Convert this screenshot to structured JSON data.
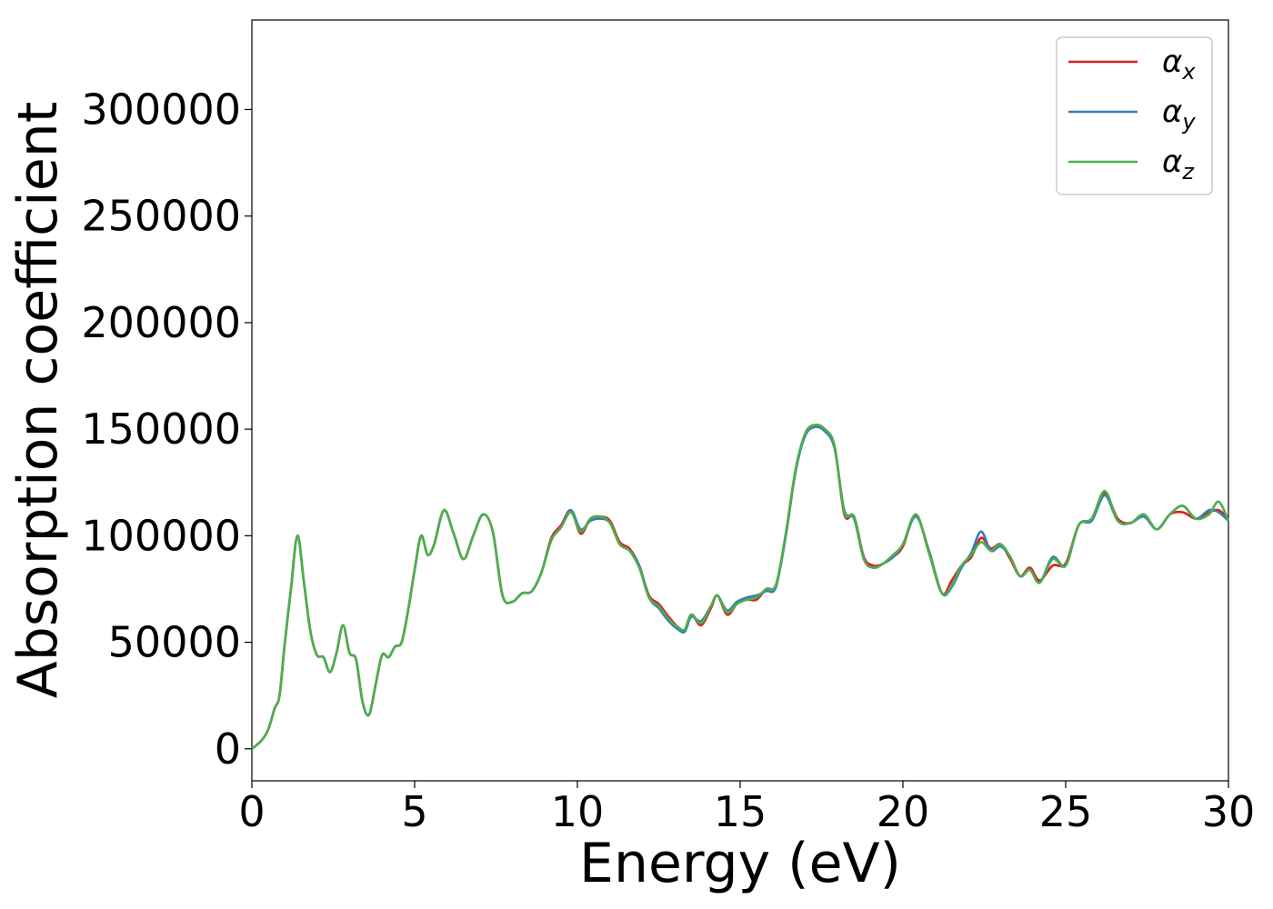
{
  "chart_data": {
    "type": "line",
    "xlabel": "Energy (eV)",
    "ylabel": "Absorption coefficient",
    "xlim": [
      0,
      30
    ],
    "ylim": [
      -15000,
      342000
    ],
    "xticks": [
      0,
      5,
      10,
      15,
      20,
      25,
      30
    ],
    "xtick_labels": [
      "0",
      "5",
      "10",
      "15",
      "20",
      "25",
      "30"
    ],
    "yticks": [
      0,
      50000,
      100000,
      150000,
      200000,
      250000,
      300000
    ],
    "ytick_labels": [
      "0",
      "50000",
      "100000",
      "150000",
      "200000",
      "250000",
      "300000"
    ],
    "grid": false,
    "legend_position": "top-right",
    "x": [
      0,
      0.3,
      0.5,
      0.7,
      0.85,
      1.0,
      1.2,
      1.4,
      1.6,
      1.8,
      2.0,
      2.2,
      2.4,
      2.6,
      2.8,
      3.0,
      3.2,
      3.4,
      3.6,
      3.8,
      4.0,
      4.2,
      4.4,
      4.6,
      4.8,
      5.0,
      5.2,
      5.4,
      5.6,
      5.9,
      6.2,
      6.5,
      6.8,
      7.1,
      7.4,
      7.7,
      8.0,
      8.3,
      8.6,
      8.9,
      9.2,
      9.5,
      9.8,
      10.1,
      10.4,
      10.7,
      11.0,
      11.3,
      11.6,
      11.9,
      12.2,
      12.5,
      12.8,
      13.1,
      13.3,
      13.5,
      13.8,
      14.1,
      14.3,
      14.6,
      14.9,
      15.2,
      15.5,
      15.8,
      16.1,
      16.4,
      16.7,
      17.0,
      17.3,
      17.6,
      17.9,
      18.2,
      18.5,
      18.8,
      19.1,
      19.4,
      19.7,
      20.0,
      20.4,
      20.8,
      21.2,
      21.5,
      21.8,
      22.1,
      22.4,
      22.7,
      23.0,
      23.3,
      23.6,
      23.9,
      24.2,
      24.6,
      25.0,
      25.4,
      25.8,
      26.2,
      26.6,
      27.0,
      27.4,
      27.8,
      28.2,
      28.6,
      29.0,
      29.4,
      29.7,
      30.0
    ],
    "series": [
      {
        "name": "αx",
        "color": "#e41a1c",
        "values": [
          0,
          4000,
          9000,
          19000,
          25000,
          48000,
          75000,
          100000,
          78000,
          55000,
          44000,
          43000,
          36000,
          45000,
          58000,
          45000,
          42000,
          22000,
          16000,
          30000,
          44000,
          43000,
          48000,
          50000,
          65000,
          84000,
          100000,
          91000,
          96000,
          112000,
          101000,
          89000,
          100000,
          110000,
          102000,
          72000,
          69000,
          73000,
          74000,
          83000,
          99000,
          105000,
          112000,
          101000,
          108000,
          109000,
          107000,
          97000,
          94000,
          86000,
          72000,
          68000,
          62000,
          57000,
          56000,
          63000,
          58000,
          66000,
          72000,
          63000,
          68000,
          70000,
          70000,
          75000,
          77000,
          100000,
          130000,
          148000,
          152000,
          150000,
          142000,
          110000,
          109000,
          90000,
          86000,
          87000,
          90000,
          95000,
          110000,
          92000,
          73000,
          79000,
          86000,
          90000,
          99000,
          94000,
          96000,
          89000,
          81000,
          85000,
          79000,
          86000,
          87000,
          105000,
          108000,
          120000,
          108000,
          106000,
          110000,
          103000,
          110000,
          111000,
          108000,
          111000,
          112000,
          108000
        ]
      },
      {
        "name": "αy",
        "color": "#377eb8",
        "values": [
          0,
          4000,
          9000,
          19000,
          25000,
          48000,
          75000,
          100000,
          78000,
          55000,
          44000,
          43000,
          36000,
          45000,
          58000,
          45000,
          42000,
          22000,
          16000,
          30000,
          44000,
          43000,
          48000,
          50000,
          65000,
          84000,
          100000,
          91000,
          96000,
          112000,
          101000,
          89000,
          100000,
          110000,
          102000,
          72000,
          69000,
          73000,
          74000,
          83000,
          98000,
          104000,
          112000,
          103000,
          107000,
          108000,
          106000,
          96000,
          93000,
          86000,
          71000,
          66000,
          60000,
          56000,
          55000,
          62000,
          60000,
          67000,
          72000,
          65000,
          69000,
          71000,
          72000,
          74000,
          76000,
          100000,
          130000,
          147000,
          151000,
          149000,
          141000,
          112000,
          108000,
          89000,
          85000,
          87000,
          90000,
          96000,
          109000,
          93000,
          73000,
          76000,
          85000,
          92000,
          102000,
          93000,
          95000,
          90000,
          81000,
          84000,
          78000,
          90000,
          86000,
          105000,
          107000,
          119000,
          107000,
          106000,
          109000,
          103000,
          110000,
          114000,
          108000,
          112000,
          111000,
          107000
        ]
      },
      {
        "name": "αz",
        "color": "#4daf4a",
        "values": [
          0,
          4000,
          9000,
          19000,
          25000,
          48000,
          75000,
          100000,
          78000,
          55000,
          44000,
          43000,
          36000,
          45000,
          58000,
          45000,
          42000,
          22000,
          16000,
          30000,
          44000,
          43000,
          48000,
          50000,
          65000,
          84000,
          100000,
          91000,
          96000,
          112000,
          101000,
          89000,
          100000,
          110000,
          102000,
          72000,
          69000,
          73000,
          74000,
          83000,
          98000,
          104000,
          111000,
          102000,
          108000,
          109000,
          106000,
          96000,
          93000,
          85000,
          71000,
          67000,
          61000,
          57000,
          56000,
          63000,
          59000,
          67000,
          72000,
          64000,
          68000,
          70000,
          71000,
          75000,
          77000,
          101000,
          131000,
          148000,
          152000,
          150000,
          142000,
          111000,
          109000,
          89000,
          85000,
          87000,
          91000,
          96000,
          110000,
          92000,
          73000,
          77000,
          86000,
          91000,
          97000,
          93000,
          96000,
          90000,
          81000,
          84000,
          78000,
          89000,
          86000,
          105000,
          108000,
          121000,
          107000,
          106000,
          110000,
          103000,
          110000,
          114000,
          108000,
          110000,
          116000,
          107000
        ]
      }
    ]
  }
}
